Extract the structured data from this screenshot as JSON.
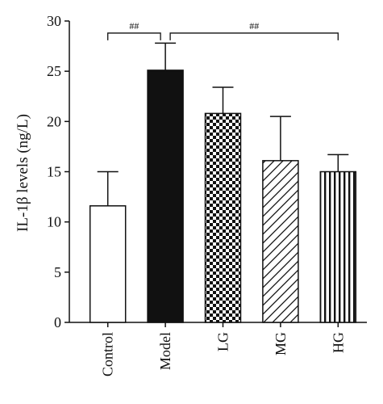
{
  "chart_data": {
    "type": "bar",
    "categories": [
      "Control",
      "Model",
      "LG",
      "MG",
      "HG"
    ],
    "values": [
      11.6,
      25.1,
      20.8,
      16.1,
      15.0
    ],
    "errors": [
      3.4,
      2.7,
      2.6,
      4.4,
      1.7
    ],
    "fills": [
      "white",
      "black",
      "checker",
      "diagonal",
      "vertical"
    ],
    "ylabel": "IL-1β levels (ng/L)",
    "ylim": [
      0,
      30
    ],
    "yticks": [
      0,
      5,
      10,
      15,
      20,
      25,
      30
    ],
    "grid": false,
    "significance": [
      {
        "label": "##",
        "from": "Control",
        "to": "Model",
        "bracket_y": 28.8
      },
      {
        "label": "##",
        "from": "Model",
        "to": "HG",
        "bracket_y": 28.8
      }
    ]
  }
}
